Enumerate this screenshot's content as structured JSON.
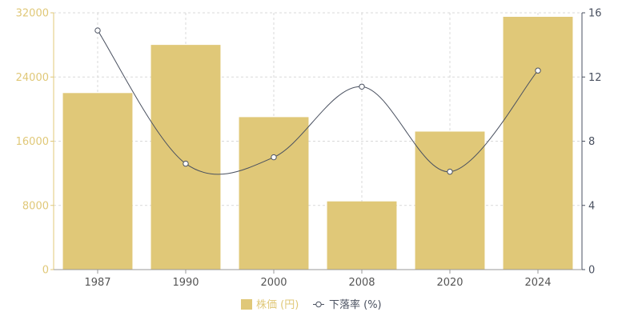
{
  "chart_data": {
    "type": "bar",
    "categories": [
      "1987",
      "1990",
      "2000",
      "2008",
      "2020",
      "2024"
    ],
    "series": [
      {
        "name": "株価 (円)",
        "type": "bar",
        "axis": "left",
        "values": [
          22000,
          28000,
          19000,
          8500,
          17200,
          31500
        ],
        "color": "#e0c878"
      },
      {
        "name": "下落率 (%)",
        "type": "line",
        "axis": "right",
        "values": [
          14.9,
          6.6,
          7.0,
          11.4,
          6.1,
          12.4
        ],
        "color": "#4a5160"
      }
    ],
    "y_left": {
      "ylim": [
        0,
        32000
      ],
      "ticks": [
        "0",
        "8000",
        "16000",
        "24000",
        "32000"
      ],
      "color": "#e0c878"
    },
    "y_right": {
      "ylim": [
        0,
        16
      ],
      "ticks": [
        "0",
        "4",
        "8",
        "12",
        "16"
      ],
      "color": "#4a5160"
    },
    "grid": true,
    "legend_position": "bottom-center"
  }
}
